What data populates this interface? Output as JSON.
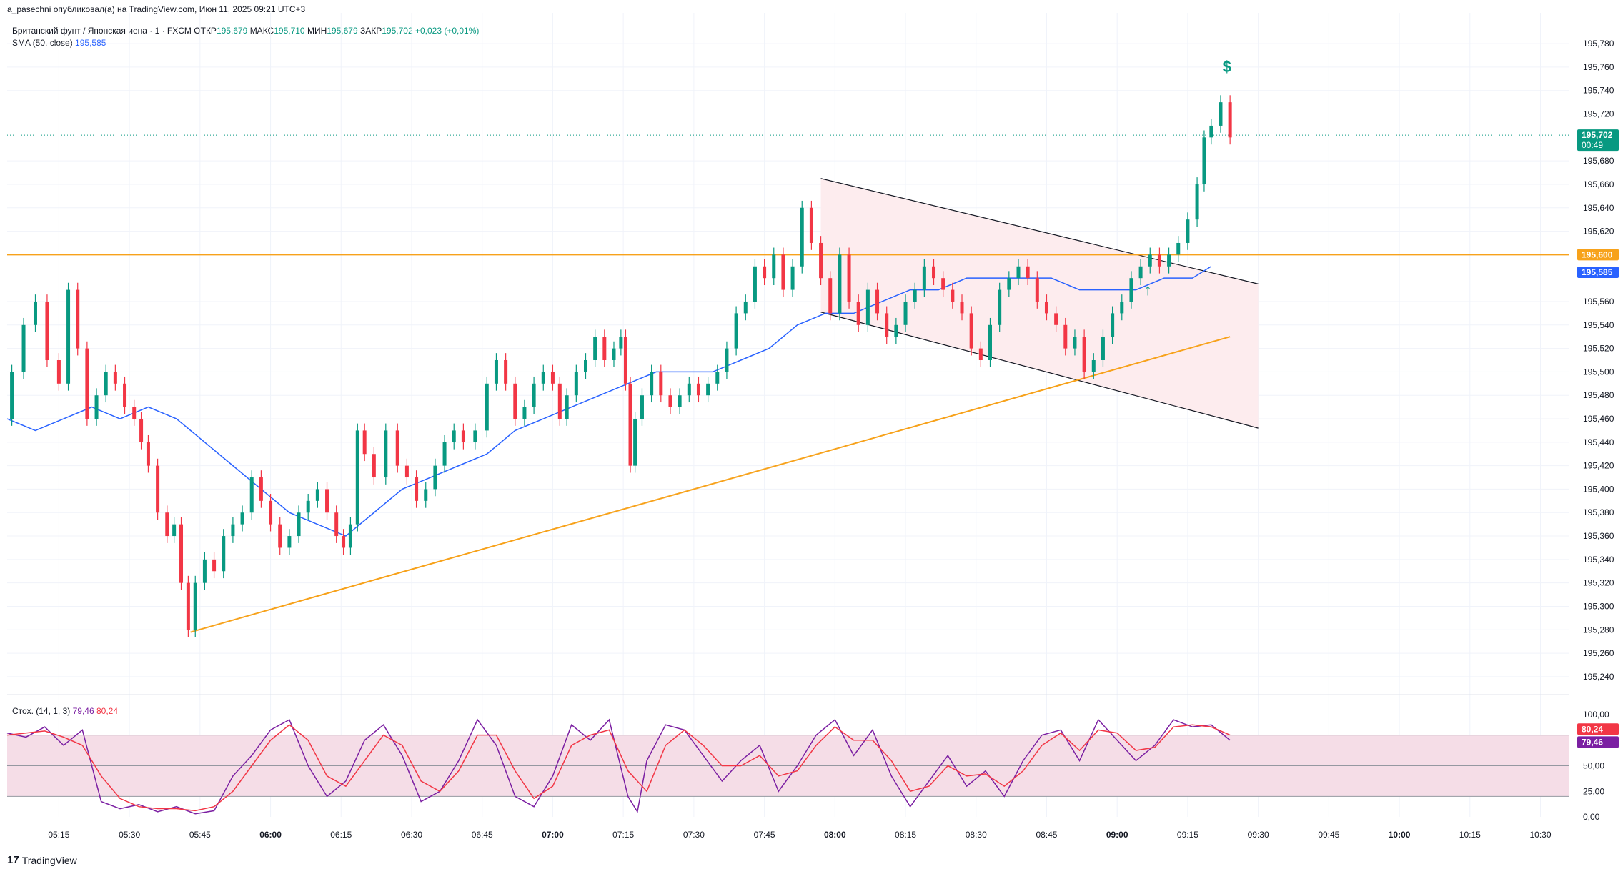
{
  "header": {
    "published": "a_pasechni опубликовал(а) на TradingView.com, Июн 11, 2025 09:21 UTC+3"
  },
  "legend": {
    "symbol": "Британский фунт / Японская иена · 1 · FXCM",
    "open_label": "ОТКР",
    "open": "195,679",
    "high_label": "МАКС",
    "high": "195,710",
    "low_label": "МИН",
    "low": "195,679",
    "close_label": "ЗАКР",
    "close": "195,702",
    "change": "+0,023 (+0,01%)",
    "sma_label": "SMA (50, close)",
    "sma_value": "195,585",
    "stoch_label": "Стох. (14, 1, 3)",
    "stoch_k": "79,46",
    "stoch_d": "80,24"
  },
  "footer": {
    "brand": "TradingView"
  },
  "colors": {
    "up": "#089981",
    "down": "#f23645",
    "sma": "#2962ff",
    "hline": "#f7a21b",
    "stoch_k": "#7b1fa2",
    "stoch_d": "#f23645",
    "band": "#f5dde7",
    "channel": "#fdecee"
  },
  "chart_data": {
    "type": "candlestick",
    "symbol": "GBP/JPY",
    "timeframe": "1",
    "x_ticks": [
      "05:15",
      "05:30",
      "05:45",
      "06:00",
      "06:15",
      "06:30",
      "06:45",
      "07:00",
      "07:15",
      "07:30",
      "07:45",
      "08:00",
      "08:15",
      "08:30",
      "08:45",
      "09:00",
      "09:15",
      "09:30",
      "09:45",
      "10:00",
      "10:15",
      "10:30"
    ],
    "x_bold_ticks": [
      "06:00",
      "07:00",
      "08:00",
      "09:00",
      "10:00"
    ],
    "x_range_minutes": [
      304,
      636
    ],
    "y_ticks": [
      "195,780",
      "195,760",
      "195,740",
      "195,720",
      "195,680",
      "195,660",
      "195,640",
      "195,620",
      "195,560",
      "195,540",
      "195,520",
      "195,500",
      "195,480",
      "195,460",
      "195,440",
      "195,420",
      "195,400",
      "195,380",
      "195,360",
      "195,340",
      "195,320",
      "195,300",
      "195,280",
      "195,260",
      "195,240"
    ],
    "ylim": [
      195.232,
      195.788
    ],
    "price_series": [
      [
        304,
        195.46
      ],
      [
        306,
        195.5
      ],
      [
        309,
        195.54
      ],
      [
        311,
        195.56
      ],
      [
        314,
        195.51
      ],
      [
        316,
        195.49
      ],
      [
        318,
        195.57
      ],
      [
        320,
        195.52
      ],
      [
        322,
        195.46
      ],
      [
        324,
        195.48
      ],
      [
        326,
        195.5
      ],
      [
        328,
        195.49
      ],
      [
        330,
        195.47
      ],
      [
        332,
        195.46
      ],
      [
        333,
        195.44
      ],
      [
        335,
        195.42
      ],
      [
        337,
        195.38
      ],
      [
        339,
        195.36
      ],
      [
        340,
        195.37
      ],
      [
        342,
        195.32
      ],
      [
        343,
        195.28
      ],
      [
        345,
        195.32
      ],
      [
        347,
        195.34
      ],
      [
        349,
        195.33
      ],
      [
        351,
        195.36
      ],
      [
        353,
        195.37
      ],
      [
        355,
        195.38
      ],
      [
        357,
        195.41
      ],
      [
        359,
        195.39
      ],
      [
        361,
        195.37
      ],
      [
        363,
        195.35
      ],
      [
        365,
        195.36
      ],
      [
        367,
        195.38
      ],
      [
        369,
        195.39
      ],
      [
        371,
        195.4
      ],
      [
        373,
        195.38
      ],
      [
        375,
        195.36
      ],
      [
        376,
        195.35
      ],
      [
        378,
        195.37
      ],
      [
        379,
        195.45
      ],
      [
        381,
        195.43
      ],
      [
        383,
        195.41
      ],
      [
        386,
        195.45
      ],
      [
        388,
        195.42
      ],
      [
        390,
        195.41
      ],
      [
        392,
        195.39
      ],
      [
        394,
        195.4
      ],
      [
        396,
        195.42
      ],
      [
        398,
        195.44
      ],
      [
        400,
        195.45
      ],
      [
        402,
        195.44
      ],
      [
        405,
        195.45
      ],
      [
        407,
        195.49
      ],
      [
        409,
        195.51
      ],
      [
        411,
        195.49
      ],
      [
        413,
        195.46
      ],
      [
        415,
        195.47
      ],
      [
        417,
        195.49
      ],
      [
        419,
        195.5
      ],
      [
        421,
        195.49
      ],
      [
        422,
        195.46
      ],
      [
        424,
        195.48
      ],
      [
        426,
        195.5
      ],
      [
        428,
        195.51
      ],
      [
        430,
        195.53
      ],
      [
        432,
        195.51
      ],
      [
        434,
        195.52
      ],
      [
        435,
        195.53
      ],
      [
        436,
        195.49
      ],
      [
        437,
        195.42
      ],
      [
        438,
        195.46
      ],
      [
        440,
        195.48
      ],
      [
        442,
        195.5
      ],
      [
        444,
        195.48
      ],
      [
        446,
        195.47
      ],
      [
        448,
        195.48
      ],
      [
        450,
        195.49
      ],
      [
        452,
        195.48
      ],
      [
        454,
        195.49
      ],
      [
        456,
        195.5
      ],
      [
        458,
        195.52
      ],
      [
        460,
        195.55
      ],
      [
        462,
        195.56
      ],
      [
        464,
        195.59
      ],
      [
        466,
        195.58
      ],
      [
        468,
        195.6
      ],
      [
        470,
        195.57
      ],
      [
        472,
        195.59
      ],
      [
        474,
        195.64
      ],
      [
        476,
        195.61
      ],
      [
        478,
        195.58
      ],
      [
        480,
        195.55
      ],
      [
        482,
        195.6
      ],
      [
        484,
        195.56
      ],
      [
        486,
        195.54
      ],
      [
        488,
        195.57
      ],
      [
        490,
        195.55
      ],
      [
        492,
        195.53
      ],
      [
        494,
        195.54
      ],
      [
        496,
        195.56
      ],
      [
        498,
        195.57
      ],
      [
        500,
        195.59
      ],
      [
        502,
        195.58
      ],
      [
        504,
        195.57
      ],
      [
        506,
        195.56
      ],
      [
        508,
        195.55
      ],
      [
        510,
        195.52
      ],
      [
        512,
        195.51
      ],
      [
        514,
        195.54
      ],
      [
        516,
        195.57
      ],
      [
        518,
        195.58
      ],
      [
        520,
        195.59
      ],
      [
        522,
        195.58
      ],
      [
        524,
        195.56
      ],
      [
        526,
        195.55
      ],
      [
        528,
        195.54
      ],
      [
        530,
        195.52
      ],
      [
        532,
        195.53
      ],
      [
        534,
        195.5
      ],
      [
        536,
        195.51
      ],
      [
        538,
        195.53
      ],
      [
        540,
        195.55
      ],
      [
        542,
        195.56
      ],
      [
        544,
        195.58
      ],
      [
        546,
        195.59
      ],
      [
        548,
        195.6
      ],
      [
        550,
        195.59
      ],
      [
        552,
        195.6
      ],
      [
        554,
        195.61
      ],
      [
        556,
        195.63
      ],
      [
        558,
        195.66
      ],
      [
        559,
        195.7
      ],
      [
        561,
        195.71
      ],
      [
        563,
        195.73
      ],
      [
        565,
        195.7
      ]
    ],
    "sma_series": [
      [
        304,
        195.46
      ],
      [
        310,
        195.45
      ],
      [
        316,
        195.46
      ],
      [
        322,
        195.47
      ],
      [
        328,
        195.46
      ],
      [
        334,
        195.47
      ],
      [
        340,
        195.46
      ],
      [
        346,
        195.44
      ],
      [
        352,
        195.42
      ],
      [
        358,
        195.4
      ],
      [
        364,
        195.38
      ],
      [
        370,
        195.37
      ],
      [
        376,
        195.36
      ],
      [
        382,
        195.38
      ],
      [
        388,
        195.4
      ],
      [
        394,
        195.41
      ],
      [
        400,
        195.42
      ],
      [
        406,
        195.43
      ],
      [
        412,
        195.45
      ],
      [
        418,
        195.46
      ],
      [
        424,
        195.47
      ],
      [
        430,
        195.48
      ],
      [
        436,
        195.49
      ],
      [
        442,
        195.5
      ],
      [
        448,
        195.5
      ],
      [
        454,
        195.5
      ],
      [
        460,
        195.51
      ],
      [
        466,
        195.52
      ],
      [
        472,
        195.54
      ],
      [
        478,
        195.55
      ],
      [
        484,
        195.55
      ],
      [
        490,
        195.56
      ],
      [
        496,
        195.57
      ],
      [
        502,
        195.57
      ],
      [
        508,
        195.58
      ],
      [
        514,
        195.58
      ],
      [
        520,
        195.58
      ],
      [
        526,
        195.58
      ],
      [
        532,
        195.57
      ],
      [
        538,
        195.57
      ],
      [
        544,
        195.57
      ],
      [
        550,
        195.58
      ],
      [
        556,
        195.58
      ],
      [
        560,
        195.59
      ]
    ],
    "horizontal_line": 195.6,
    "current_price": 195.702,
    "current_price_label": "195,702",
    "countdown": "00:49",
    "sma_last_label": "195,585",
    "hline_label": "195,600",
    "trendline": [
      [
        343,
        195.278
      ],
      [
        564,
        195.53
      ]
    ],
    "channel_upper": [
      [
        477,
        195.665
      ],
      [
        570,
        195.575
      ]
    ],
    "channel_lower": [
      [
        477,
        195.551
      ],
      [
        570,
        195.452
      ]
    ],
    "stoch": {
      "y_ticks": [
        "100,00",
        "50,00",
        "25,00",
        "0,00"
      ],
      "ylim": [
        0,
        100
      ],
      "bands": [
        20,
        50,
        80
      ],
      "k_label": "79,46",
      "d_label": "80,24",
      "k_series": [
        [
          304,
          82
        ],
        [
          308,
          78
        ],
        [
          312,
          88
        ],
        [
          316,
          70
        ],
        [
          320,
          85
        ],
        [
          324,
          15
        ],
        [
          328,
          8
        ],
        [
          332,
          12
        ],
        [
          336,
          5
        ],
        [
          340,
          10
        ],
        [
          344,
          3
        ],
        [
          348,
          6
        ],
        [
          352,
          40
        ],
        [
          356,
          60
        ],
        [
          360,
          85
        ],
        [
          364,
          95
        ],
        [
          368,
          50
        ],
        [
          372,
          20
        ],
        [
          376,
          35
        ],
        [
          380,
          75
        ],
        [
          384,
          90
        ],
        [
          388,
          60
        ],
        [
          392,
          15
        ],
        [
          396,
          25
        ],
        [
          400,
          55
        ],
        [
          404,
          95
        ],
        [
          408,
          70
        ],
        [
          412,
          20
        ],
        [
          416,
          10
        ],
        [
          420,
          40
        ],
        [
          424,
          90
        ],
        [
          428,
          75
        ],
        [
          432,
          95
        ],
        [
          436,
          20
        ],
        [
          438,
          5
        ],
        [
          440,
          55
        ],
        [
          444,
          90
        ],
        [
          448,
          85
        ],
        [
          452,
          60
        ],
        [
          456,
          35
        ],
        [
          460,
          55
        ],
        [
          464,
          70
        ],
        [
          468,
          25
        ],
        [
          472,
          50
        ],
        [
          476,
          80
        ],
        [
          480,
          95
        ],
        [
          484,
          60
        ],
        [
          488,
          85
        ],
        [
          492,
          40
        ],
        [
          496,
          10
        ],
        [
          500,
          35
        ],
        [
          504,
          60
        ],
        [
          508,
          30
        ],
        [
          512,
          45
        ],
        [
          516,
          20
        ],
        [
          520,
          55
        ],
        [
          524,
          80
        ],
        [
          528,
          85
        ],
        [
          532,
          55
        ],
        [
          536,
          95
        ],
        [
          540,
          75
        ],
        [
          544,
          55
        ],
        [
          548,
          70
        ],
        [
          552,
          95
        ],
        [
          556,
          88
        ],
        [
          560,
          90
        ],
        [
          564,
          75
        ]
      ],
      "d_series": [
        [
          304,
          80
        ],
        [
          308,
          82
        ],
        [
          312,
          84
        ],
        [
          316,
          78
        ],
        [
          320,
          70
        ],
        [
          324,
          40
        ],
        [
          328,
          18
        ],
        [
          332,
          10
        ],
        [
          336,
          8
        ],
        [
          340,
          8
        ],
        [
          344,
          6
        ],
        [
          348,
          10
        ],
        [
          352,
          25
        ],
        [
          356,
          50
        ],
        [
          360,
          75
        ],
        [
          364,
          90
        ],
        [
          368,
          75
        ],
        [
          372,
          40
        ],
        [
          376,
          30
        ],
        [
          380,
          55
        ],
        [
          384,
          80
        ],
        [
          388,
          70
        ],
        [
          392,
          35
        ],
        [
          396,
          25
        ],
        [
          400,
          45
        ],
        [
          404,
          80
        ],
        [
          408,
          80
        ],
        [
          412,
          45
        ],
        [
          416,
          18
        ],
        [
          420,
          30
        ],
        [
          424,
          70
        ],
        [
          428,
          80
        ],
        [
          432,
          85
        ],
        [
          436,
          45
        ],
        [
          440,
          25
        ],
        [
          444,
          70
        ],
        [
          448,
          85
        ],
        [
          452,
          70
        ],
        [
          456,
          50
        ],
        [
          460,
          50
        ],
        [
          464,
          60
        ],
        [
          468,
          40
        ],
        [
          472,
          45
        ],
        [
          476,
          70
        ],
        [
          480,
          88
        ],
        [
          484,
          75
        ],
        [
          488,
          75
        ],
        [
          492,
          55
        ],
        [
          496,
          25
        ],
        [
          500,
          30
        ],
        [
          504,
          50
        ],
        [
          508,
          40
        ],
        [
          512,
          42
        ],
        [
          516,
          30
        ],
        [
          520,
          45
        ],
        [
          524,
          70
        ],
        [
          528,
          82
        ],
        [
          532,
          65
        ],
        [
          536,
          85
        ],
        [
          540,
          82
        ],
        [
          544,
          65
        ],
        [
          548,
          68
        ],
        [
          552,
          88
        ],
        [
          556,
          90
        ],
        [
          560,
          88
        ],
        [
          564,
          80
        ]
      ]
    }
  }
}
